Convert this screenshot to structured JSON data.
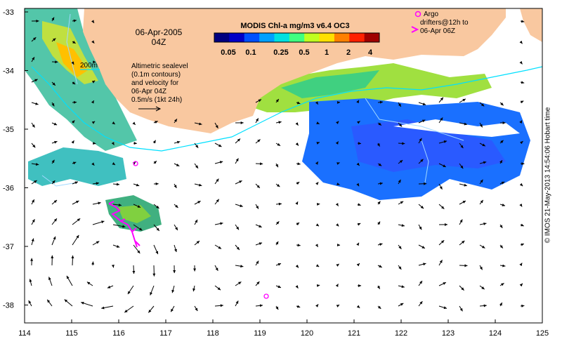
{
  "map": {
    "date": "06-Apr-2005",
    "hour": "04Z",
    "colorbar_title": "MODIS Chl-a mg/m3 v6.4 OC3",
    "colorbar_ticks": [
      "0.05",
      "0.1",
      "0.25",
      "0.5",
      "1",
      "2",
      "4"
    ],
    "colorbar_colors": [
      "#000080",
      "#0000c8",
      "#0050ff",
      "#00a0ff",
      "#00e0e0",
      "#40ff80",
      "#c0ff20",
      "#ffe000",
      "#ff8000",
      "#ff2000",
      "#a00000"
    ],
    "contour_label": "200m",
    "legend_lines": [
      "Altimetric sealevel",
      "(0.1m contours)",
      "and velocity for",
      "06-Apr 04Z",
      "0.5m/s (1kt 24h)"
    ],
    "argo_lines": [
      "Argo",
      "drifters@12h to",
      "06-Apr 06Z"
    ],
    "x_ticks": [
      "114",
      "115",
      "116",
      "117",
      "118",
      "119",
      "120",
      "121",
      "122",
      "123",
      "124",
      "125"
    ],
    "y_ticks": [
      "-33",
      "-34",
      "-35",
      "-36",
      "-37",
      "-38"
    ],
    "credit": "© IMOS 21-May-2013 14:54:06 Hobart time",
    "colors": {
      "land": "#f9c8a0",
      "ocean": "#ffffff",
      "contour": "#00e0ff",
      "sealevel": "#a0d8ff",
      "argo": "#ff00ff",
      "arrows": "#000000"
    }
  }
}
